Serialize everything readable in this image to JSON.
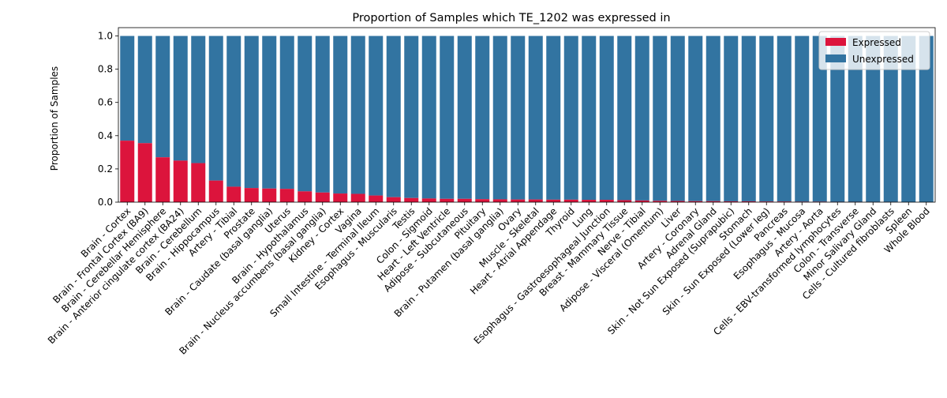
{
  "chart_data": {
    "type": "bar",
    "stacked": true,
    "title": "Proportion of Samples which TE_1202 was expressed in",
    "xlabel": "",
    "ylabel": "Proportion of Samples",
    "ylim": [
      0,
      1.05
    ],
    "yticks": [
      "0.0",
      "0.2",
      "0.4",
      "0.6",
      "0.8",
      "1.0"
    ],
    "grid": false,
    "legend_position": "top-right",
    "categories": [
      "Brain - Cortex",
      "Brain - Frontal Cortex (BA9)",
      "Brain - Cerebellar Hemisphere",
      "Brain - Anterior cingulate cortex (BA24)",
      "Brain - Cerebellum",
      "Brain - Hippocampus",
      "Artery - Tibial",
      "Prostate",
      "Brain - Caudate (basal ganglia)",
      "Uterus",
      "Brain - Hypothalamus",
      "Brain - Nucleus accumbens (basal ganglia)",
      "Kidney - Cortex",
      "Vagina",
      "Small Intestine - Terminal Ileum",
      "Esophagus - Muscularis",
      "Testis",
      "Colon - Sigmoid",
      "Heart - Left Ventricle",
      "Adipose - Subcutaneous",
      "Pituitary",
      "Brain - Putamen (basal ganglia)",
      "Ovary",
      "Muscle - Skeletal",
      "Heart - Atrial Appendage",
      "Thyroid",
      "Lung",
      "Esophagus - Gastroesophageal Junction",
      "Breast - Mammary Tissue",
      "Nerve - Tibial",
      "Adipose - Visceral (Omentum)",
      "Liver",
      "Artery - Coronary",
      "Adrenal Gland",
      "Skin - Not Sun Exposed (Suprapubic)",
      "Stomach",
      "Skin - Sun Exposed (Lower leg)",
      "Pancreas",
      "Esophagus - Mucosa",
      "Artery - Aorta",
      "Cells - EBV-transformed lymphocytes",
      "Colon - Transverse",
      "Minor Salivary Gland",
      "Cells - Cultured fibroblasts",
      "Spleen",
      "Whole Blood"
    ],
    "series": [
      {
        "name": "Expressed",
        "color": "#dc143c",
        "values": [
          0.37,
          0.355,
          0.27,
          0.25,
          0.235,
          0.13,
          0.093,
          0.085,
          0.082,
          0.08,
          0.065,
          0.058,
          0.052,
          0.05,
          0.04,
          0.03,
          0.025,
          0.022,
          0.02,
          0.02,
          0.018,
          0.017,
          0.016,
          0.016,
          0.015,
          0.015,
          0.014,
          0.014,
          0.012,
          0.01,
          0.008,
          0.007,
          0.006,
          0.006,
          0.005,
          0.005,
          0.004,
          0.004,
          0.003,
          0.003,
          0.002,
          0.002,
          0.001,
          0.001,
          0.0,
          0.0
        ]
      },
      {
        "name": "Unexpressed",
        "color": "#3274a1",
        "values": [
          0.63,
          0.645,
          0.73,
          0.75,
          0.765,
          0.87,
          0.907,
          0.915,
          0.918,
          0.92,
          0.935,
          0.942,
          0.948,
          0.95,
          0.96,
          0.97,
          0.975,
          0.978,
          0.98,
          0.98,
          0.982,
          0.983,
          0.984,
          0.984,
          0.985,
          0.985,
          0.986,
          0.986,
          0.988,
          0.99,
          0.992,
          0.993,
          0.994,
          0.994,
          0.995,
          0.995,
          0.996,
          0.996,
          0.997,
          0.997,
          0.998,
          0.998,
          0.999,
          0.999,
          1.0,
          1.0
        ]
      }
    ]
  }
}
